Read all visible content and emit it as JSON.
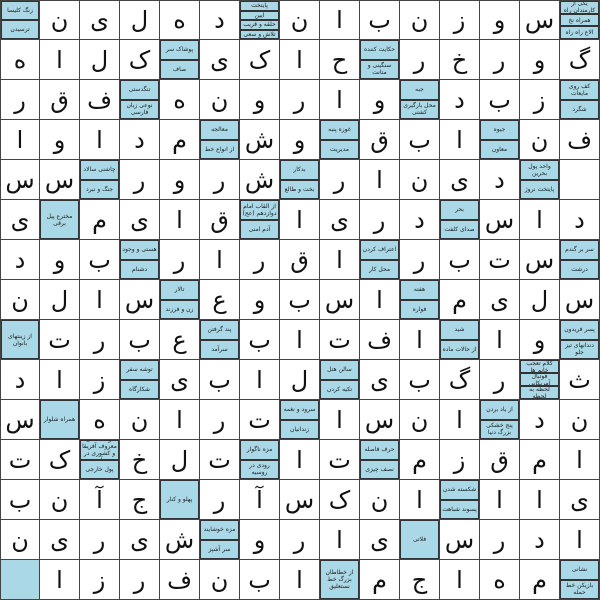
{
  "accent_color": "#aad8e6",
  "grid": [
    [
      [
        "زنگ کلیسا",
        "ترسیدن"
      ],
      "ن",
      "ی",
      "ل",
      "ه",
      "د",
      [
        "پایتخت",
        "آیین",
        "حلقه و قریب",
        "تلاش و سعی"
      ],
      "ن",
      "ا",
      "ب",
      "ن",
      "ز",
      "و",
      "س",
      [
        "یکی از کارمندان راه",
        "همراه نخ",
        "الاغ راه راه"
      ]
    ],
    [
      "ه",
      "ا",
      "ل",
      "ک",
      [
        "پوشاک سر",
        "صاف"
      ],
      "ی",
      "ک",
      "ا",
      "ح",
      [
        "حکایت کننده",
        "سنگینی و متانت"
      ],
      "ر",
      "خ",
      "ر",
      "و",
      "گ"
    ],
    [
      "ر",
      "ق",
      "ف",
      [
        "تنگدستی",
        "نوعی زبان فارسی"
      ],
      "ه",
      "ن",
      "و",
      "ر",
      "ا",
      "و",
      [
        "جبه",
        "محل بارگیری کشتی"
      ],
      "د",
      "ب",
      "ز",
      [
        "کف روی مایعات",
        "شگرد"
      ]
    ],
    [
      "ا",
      "و",
      "ا",
      "د",
      "م",
      [
        "معالجه",
        "از انواع خط"
      ],
      "ش",
      "و",
      [
        "غوزه پنبه",
        "مدیریت"
      ],
      "ق",
      "ب",
      "ا",
      [
        "جیوه",
        "معاون"
      ],
      "ن",
      "ف"
    ],
    [
      "س",
      "س",
      [
        "چاشنی سالاد",
        "جنگ و نبرد"
      ],
      "ر",
      "و",
      "ر",
      "ش",
      [
        "بدکار",
        "بخت و طالع"
      ],
      "ر",
      "ا",
      "ن",
      "ی",
      "د",
      [
        "واحد پول بحرین",
        "پایتخت نروژ"
      ],
      null
    ],
    [
      "ی",
      [
        "مخترع پیل برقی"
      ],
      "م",
      "ی",
      "ا",
      "ق",
      [
        "از القاب امام دوازدهم (عج)",
        "آدم امنی"
      ],
      "ا",
      "ی",
      "ر",
      "د",
      [
        "بحر",
        "صدای کلفت"
      ],
      "س",
      "ا",
      "د"
    ],
    [
      "د",
      "و",
      "ب",
      [
        "هستی و وجود",
        "دشنام"
      ],
      "ر",
      "ا",
      "ر",
      "ق",
      "ا",
      [
        "اعتراف کردن",
        "محل کار"
      ],
      "ر",
      "ب",
      "ت",
      "س",
      [
        "سر بر گندم",
        "درشت"
      ]
    ],
    [
      "ن",
      "ل",
      "ا",
      "س",
      [
        "تالار",
        "زن و فرزند"
      ],
      "ع",
      "و",
      "ب",
      "س",
      "ا",
      [
        "هفته",
        "فواره"
      ],
      "م",
      "ی",
      "ل",
      "س"
    ],
    [
      [
        "از زینتهای بانوان"
      ],
      "ت",
      "ر",
      "ب",
      "ع",
      [
        "پند گرفتن",
        "سرآمد"
      ],
      "ب",
      "ا",
      "ت",
      "ف",
      "ا",
      [
        "شید",
        "از حالات ماده"
      ],
      "ا",
      "و",
      [
        "پسر فریدون",
        "دندانهای تیز جلو"
      ]
    ],
    [
      "د",
      "ا",
      "ز",
      [
        "توشه سفر",
        "شکارگاه"
      ],
      "ی",
      "ب",
      "ا",
      "ل",
      [
        "سالن هتل",
        "تکیه کردن"
      ],
      "ی",
      "ب",
      "گ",
      "ر",
      [
        "کلام تعجب خانم ها",
        "فوتبال آمریکایی",
        "لحظه به لحظه"
      ],
      "ث"
    ],
    [
      "س",
      [
        "همراه شلوار"
      ],
      "ه",
      "ن",
      "ا",
      "ر",
      "ت",
      [
        "سرود و نغمه",
        "زندانیان"
      ],
      "ا",
      "س",
      "ن",
      "ا",
      [
        "از یاد بردن",
        "پنج خشکی بزرگ دنیا"
      ],
      "د",
      "ن"
    ],
    [
      "ت",
      "ک",
      [
        "از قلعه‌های معروف آفریقا و کشوری در آن",
        "پول خارجی"
      ],
      "خ",
      "ل",
      "ت",
      [
        "مزه ناگوار",
        "رودی در روسیه"
      ],
      "ا",
      "ت",
      [
        "حرف فاصله",
        "نصف چیزی"
      ],
      "م",
      "ز",
      "ق",
      "م",
      "ا"
    ],
    [
      "ب",
      "ن",
      "آ",
      "ج",
      [
        "پهلو و کنار"
      ],
      "ر",
      "آ",
      "س",
      "ک",
      "ن",
      "ا",
      [
        "شکسته شدن",
        "پسوند شباهت"
      ],
      "ا",
      "ا",
      "ی"
    ],
    [
      "ن",
      "ی",
      "ر",
      "ی",
      "ش",
      [
        "مزه خوشایند",
        "سر آشپز"
      ],
      "و",
      "ر",
      "ا",
      "ی",
      [
        "فلاتی"
      ],
      "س",
      "ر",
      "د",
      "ا"
    ],
    [
      [],
      "ا",
      "ز",
      "ر",
      "ف",
      "ن",
      "ب",
      "ا",
      [
        "از خطاطان بزرگ خط نستعلیق"
      ],
      "م",
      "ج",
      "ا",
      "ه",
      "م",
      [
        "نشانی",
        "بازیکن خط حمله"
      ]
    ]
  ]
}
